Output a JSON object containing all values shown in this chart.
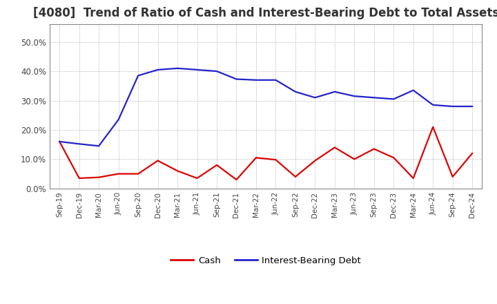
{
  "title": "[4080]  Trend of Ratio of Cash and Interest-Bearing Debt to Total Assets",
  "x_labels": [
    "Sep-19",
    "Dec-19",
    "Mar-20",
    "Jun-20",
    "Sep-20",
    "Dec-20",
    "Mar-21",
    "Jun-21",
    "Sep-21",
    "Dec-21",
    "Mar-22",
    "Jun-22",
    "Sep-22",
    "Dec-22",
    "Mar-23",
    "Jun-23",
    "Sep-23",
    "Dec-23",
    "Mar-24",
    "Jun-24",
    "Sep-24",
    "Dec-24"
  ],
  "cash": [
    0.16,
    0.035,
    0.038,
    0.05,
    0.05,
    0.095,
    0.06,
    0.035,
    0.08,
    0.03,
    0.105,
    0.098,
    0.04,
    0.095,
    0.14,
    0.1,
    0.135,
    0.105,
    0.035,
    0.21,
    0.04,
    0.12
  ],
  "interest_bearing_debt": [
    0.16,
    0.152,
    0.145,
    0.235,
    0.385,
    0.405,
    0.41,
    0.405,
    0.4,
    0.373,
    0.37,
    0.37,
    0.33,
    0.31,
    0.33,
    0.315,
    0.31,
    0.305,
    0.335,
    0.285,
    0.28,
    0.28
  ],
  "cash_color": "#dd0000",
  "ibd_color": "#2222cc",
  "ylim": [
    0.0,
    0.56
  ],
  "yticks": [
    0.0,
    0.1,
    0.2,
    0.3,
    0.4,
    0.5
  ],
  "background_color": "#ffffff",
  "title_fontsize": 12,
  "legend_labels": [
    "Cash",
    "Interest-Bearing Debt"
  ]
}
